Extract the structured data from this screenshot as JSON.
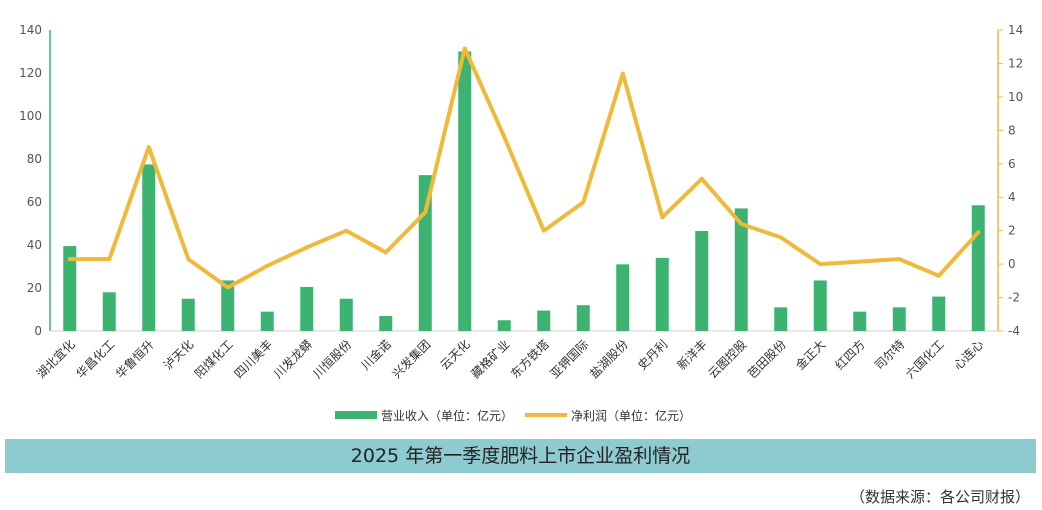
{
  "chart_data": {
    "type": "bar",
    "title": "2025 年第一季度肥料上市企业盈利情况",
    "source": "（数据来源：各公司财报）",
    "categories": [
      "湖北宜化",
      "华昌化工",
      "华鲁恒升",
      "泸天化",
      "阳煤化工",
      "四川美丰",
      "川发龙蟒",
      "川恒股份",
      "川金诺",
      "兴发集团",
      "云天化",
      "藏格矿业",
      "东方铁塔",
      "亚钾国际",
      "盐湖股份",
      "史丹利",
      "新洋丰",
      "云图控股",
      "芭田股份",
      "金正大",
      "红四方",
      "司尔特",
      "六国化工",
      "心连心"
    ],
    "series": [
      {
        "name": "营业收入（单位：亿元）",
        "type": "bar",
        "axis": "left",
        "color": "#3cb371",
        "values": [
          39.5,
          18,
          77.5,
          15,
          23.5,
          9,
          20.5,
          15,
          7,
          72.5,
          130,
          5,
          9.5,
          12,
          31,
          34,
          46.5,
          57,
          11,
          23.5,
          9,
          11,
          16,
          58.5
        ]
      },
      {
        "name": "净利润（单位：亿元）",
        "type": "line",
        "axis": "right",
        "color": "#f0b93a",
        "values": [
          0.3,
          0.3,
          7.0,
          0.3,
          -1.4,
          -0.1,
          1.0,
          2.0,
          0.7,
          3.1,
          12.9,
          7.6,
          2.0,
          3.7,
          11.4,
          2.8,
          5.1,
          2.4,
          1.6,
          0,
          0.15,
          0.3,
          -0.7,
          1.9
        ]
      }
    ],
    "y_left": {
      "min": 0,
      "max": 140,
      "step": 20
    },
    "y_right": {
      "min": -4,
      "max": 14,
      "step": 2
    },
    "legend_position": "bottom",
    "grid": false
  },
  "colors": {
    "bar": "#3cb371",
    "line": "#f0b93a",
    "left_axis": "#3cb371",
    "right_axis": "#f0b93a",
    "title_bar": "#8ecbd0"
  }
}
